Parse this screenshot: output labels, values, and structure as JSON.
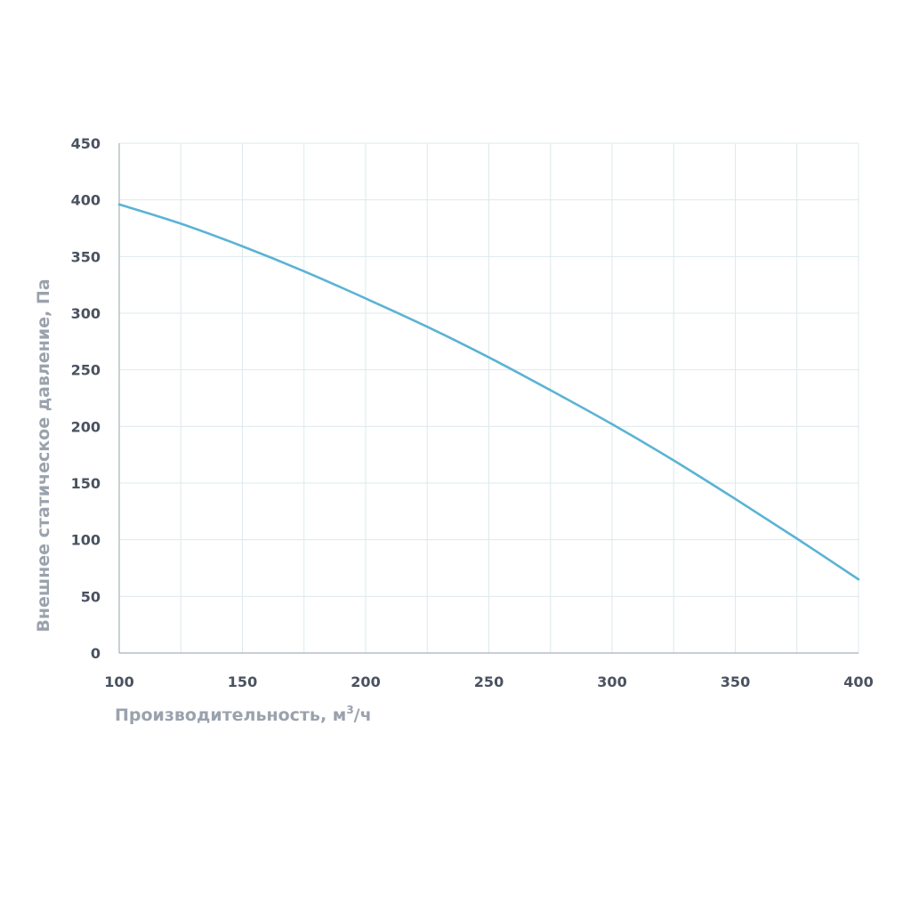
{
  "chart_data": {
    "type": "line",
    "xlabel_main": "Производительность, м",
    "xlabel_sup": "3",
    "xlabel_tail": "/ч",
    "ylabel": "Внешнее статическое давление, Па",
    "xlim": [
      100,
      400
    ],
    "ylim": [
      0,
      450
    ],
    "x_ticks": [
      100,
      150,
      200,
      250,
      300,
      350,
      400
    ],
    "x_tick_labels": [
      "100",
      "150",
      "200",
      "250",
      "300",
      "350",
      "400"
    ],
    "x_minor_step": 25,
    "y_ticks": [
      0,
      50,
      100,
      150,
      200,
      250,
      300,
      350,
      400,
      450
    ],
    "y_tick_labels": [
      "0",
      "50",
      "100",
      "150",
      "200",
      "250",
      "300",
      "350",
      "400",
      "450"
    ],
    "grid": true,
    "line_color": "#5bb3d4",
    "series": [
      {
        "x": [
          100,
          125,
          150,
          175,
          200,
          225,
          250,
          275,
          300,
          325,
          350,
          375,
          400
        ],
        "values": [
          396,
          379,
          359,
          337,
          313,
          288,
          261,
          232,
          202,
          170,
          136,
          101,
          65
        ]
      }
    ]
  }
}
